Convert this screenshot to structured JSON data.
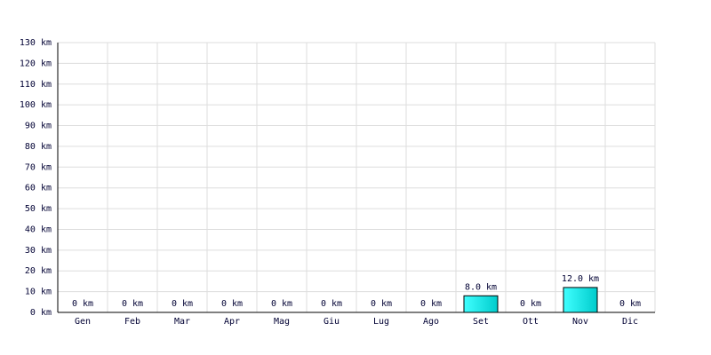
{
  "chart_data": {
    "type": "bar",
    "categories": [
      "Gen",
      "Feb",
      "Mar",
      "Apr",
      "Mag",
      "Giu",
      "Lug",
      "Ago",
      "Set",
      "Ott",
      "Nov",
      "Dic"
    ],
    "values": [
      0,
      0,
      0,
      0,
      0,
      0,
      0,
      0,
      8,
      0,
      12,
      0
    ],
    "value_labels": [
      "0 km",
      "0 km",
      "0 km",
      "0 km",
      "0 km",
      "0 km",
      "0 km",
      "0 km",
      "8.0 km",
      "0 km",
      "12.0 km",
      "0 km"
    ],
    "color": "#00cccc",
    "ylim": [
      0,
      130
    ],
    "yticks": [
      {
        "value": 0,
        "label": "0 km"
      },
      {
        "value": 10,
        "label": "10 km"
      },
      {
        "value": 20,
        "label": "20 km"
      },
      {
        "value": 30,
        "label": "30 km"
      },
      {
        "value": 40,
        "label": "40 km"
      },
      {
        "value": 50,
        "label": "50 km"
      },
      {
        "value": 60,
        "label": "60 km"
      },
      {
        "value": 70,
        "label": "70 km"
      },
      {
        "value": 80,
        "label": "80 km"
      },
      {
        "value": 90,
        "label": "90 km"
      },
      {
        "value": 100,
        "label": "100 km"
      },
      {
        "value": 110,
        "label": "110 km"
      },
      {
        "value": 120,
        "label": "120 km"
      },
      {
        "value": 130,
        "label": "130 km"
      }
    ],
    "grid": true
  }
}
